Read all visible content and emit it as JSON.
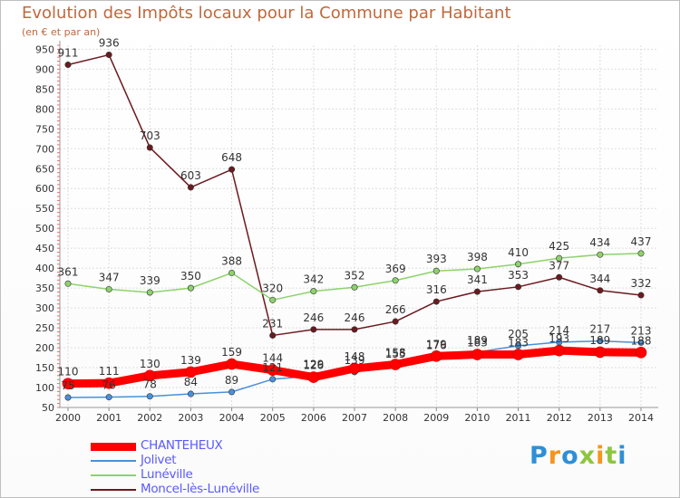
{
  "title": "Evolution des Impôts locaux pour la Commune par Habitant",
  "subtitle": "(en € et par an)",
  "logo": {
    "letters": [
      "P",
      "r",
      "o",
      "x",
      "i",
      "t",
      "i"
    ],
    "colors": [
      "#2e8fd6",
      "#f7941d",
      "#2e8fd6",
      "#8dc63f",
      "#f7941d",
      "#8dc63f",
      "#2e8fd6"
    ]
  },
  "chart_data": {
    "type": "line",
    "title": "Evolution des Impôts locaux pour la Commune par Habitant",
    "ylabel": "(en € et par an)",
    "ylim": [
      50,
      960
    ],
    "yticks": [
      50,
      100,
      150,
      200,
      250,
      300,
      350,
      400,
      450,
      500,
      550,
      600,
      650,
      700,
      750,
      800,
      850,
      900,
      950
    ],
    "x": [
      2000,
      2001,
      2002,
      2003,
      2004,
      2005,
      2006,
      2007,
      2008,
      2009,
      2010,
      2011,
      2012,
      2013,
      2014
    ],
    "series": [
      {
        "name": "Moncel-lès-Lunéville",
        "color": "#6b1a1f",
        "marker": "#6b1a1f",
        "width": 1.5,
        "values": [
          911,
          936,
          703,
          603,
          648,
          231,
          246,
          246,
          266,
          316,
          341,
          353,
          377,
          344,
          332
        ],
        "labels": [
          "911",
          "936",
          "703",
          "603",
          "648",
          "231",
          "246",
          "246",
          "266",
          "316",
          "341",
          "353",
          "377",
          "344",
          "332"
        ]
      },
      {
        "name": "Lunéville",
        "color": "#8dd36b",
        "marker": "#8dd36b",
        "width": 1.5,
        "values": [
          361,
          347,
          339,
          350,
          388,
          320,
          342,
          352,
          369,
          393,
          398,
          410,
          425,
          434,
          437
        ],
        "labels": [
          "361",
          "347",
          "339",
          "350",
          "388",
          "320",
          "342",
          "352",
          "369",
          "393",
          "398",
          "410",
          "425",
          "434",
          "437"
        ]
      },
      {
        "name": "Jolivet",
        "color": "#4a90d9",
        "marker": "#4a90d9",
        "width": 1.5,
        "values": [
          75,
          76,
          78,
          84,
          89,
          121,
          129,
          139,
          155,
          176,
          189,
          205,
          214,
          217,
          213
        ],
        "labels": [
          "75",
          "76",
          "78",
          "84",
          "89",
          "121",
          "129",
          "139",
          "155",
          "176",
          "189",
          "205",
          "214",
          "217",
          "213"
        ]
      },
      {
        "name": "CHANTEHEUX",
        "color": "#ff0000",
        "marker": "#ff0000",
        "width": 9,
        "values": [
          110,
          111,
          130,
          139,
          159,
          144,
          126,
          148,
          158,
          179,
          183,
          183,
          193,
          189,
          188
        ],
        "labels": [
          "110",
          "111",
          "130",
          "139",
          "159",
          "144",
          "126",
          "148",
          "158",
          "179",
          "183",
          "183",
          "193",
          "189",
          "188"
        ]
      }
    ]
  },
  "legend": [
    {
      "name": "CHANTEHEUX",
      "color": "#ff0000",
      "thickness": 9
    },
    {
      "name": "Jolivet",
      "color": "#4a90d9",
      "thickness": 2
    },
    {
      "name": "Lunéville",
      "color": "#8dd36b",
      "thickness": 2
    },
    {
      "name": "Moncel-lès-Lunéville",
      "color": "#6b1a1f",
      "thickness": 2
    }
  ]
}
